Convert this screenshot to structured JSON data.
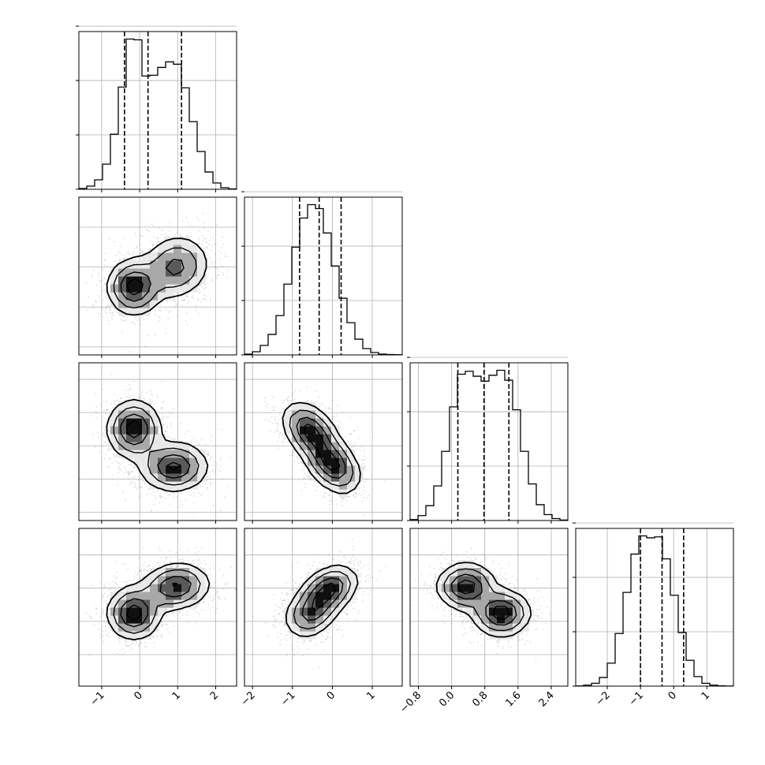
{
  "chart_data": {
    "type": "corner",
    "ndim": 4,
    "grid": true,
    "axes": [
      {
        "range": [
          -1.6,
          2.55
        ],
        "ticks": [
          -1,
          0,
          1,
          2
        ],
        "tick_labels": [
          "−1",
          "0",
          "1",
          "2"
        ]
      },
      {
        "range": [
          -2.2,
          1.75
        ],
        "ticks": [
          -2,
          -1,
          0,
          1
        ],
        "tick_labels": [
          "−2",
          "−1",
          "0",
          "1"
        ]
      },
      {
        "range": [
          -1.0,
          2.8
        ],
        "ticks": [
          -0.8,
          0.0,
          0.8,
          1.6,
          2.4
        ],
        "tick_labels": [
          "−0.8",
          "0.0",
          "0.8",
          "1.6",
          "2.4"
        ]
      },
      {
        "range": [
          -2.95,
          1.8
        ],
        "ticks": [
          -2,
          -1,
          0,
          1
        ],
        "tick_labels": [
          "−2",
          "−1",
          "0",
          "1"
        ]
      }
    ],
    "histograms": [
      {
        "quantiles": [
          -0.4,
          0.22,
          1.1
        ],
        "values": [
          0.1,
          0.4,
          1.2,
          3.2,
          7.0,
          13.0,
          19.1,
          19.0,
          14.4,
          14.5,
          15.5,
          16.2,
          15.9,
          12.9,
          8.6,
          4.8,
          2.2,
          0.8,
          0.2,
          0.05
        ]
      },
      {
        "quantiles": [
          -0.82,
          -0.33,
          0.22
        ],
        "values": [
          0.1,
          0.4,
          1.2,
          2.6,
          5.0,
          9.0,
          13.7,
          17.4,
          19.1,
          18.6,
          15.5,
          11.3,
          7.2,
          4.1,
          2.0,
          0.8,
          0.3,
          0.1,
          0.05,
          0.02
        ]
      },
      {
        "quantiles": [
          0.15,
          0.78,
          1.38
        ],
        "values": [
          0.1,
          0.5,
          1.5,
          3.5,
          7.0,
          11.5,
          14.8,
          15.1,
          14.6,
          14.1,
          14.7,
          15.2,
          14.2,
          11.2,
          7.0,
          3.7,
          1.6,
          0.6,
          0.2,
          0.05
        ]
      },
      {
        "quantiles": [
          -1.0,
          -0.35,
          0.3
        ],
        "values": [
          0.02,
          0.1,
          0.3,
          0.9,
          2.4,
          5.5,
          9.8,
          13.8,
          15.7,
          15.5,
          15.6,
          13.3,
          9.5,
          5.6,
          2.7,
          1.0,
          0.3,
          0.1,
          0.03,
          0.01
        ]
      }
    ],
    "joint": [
      {
        "x": 0,
        "y": 1,
        "components": [
          {
            "weight": 0.5,
            "mean": [
              -0.15,
              -0.5
            ],
            "sd": [
              0.35,
              0.35
            ],
            "rho": 0.0
          },
          {
            "weight": 0.5,
            "mean": [
              0.95,
              0.0
            ],
            "sd": [
              0.45,
              0.4
            ],
            "rho": 0.1
          }
        ]
      },
      {
        "x": 0,
        "y": 2,
        "components": [
          {
            "weight": 0.5,
            "mean": [
              -0.15,
              1.2
            ],
            "sd": [
              0.35,
              0.35
            ],
            "rho": 0.0
          },
          {
            "weight": 0.5,
            "mean": [
              0.9,
              0.3
            ],
            "sd": [
              0.45,
              0.3
            ],
            "rho": 0.0
          }
        ]
      },
      {
        "x": 0,
        "y": 3,
        "components": [
          {
            "weight": 0.5,
            "mean": [
              -0.15,
              -0.75
            ],
            "sd": [
              0.35,
              0.4
            ],
            "rho": 0.0
          },
          {
            "weight": 0.5,
            "mean": [
              0.95,
              0.05
            ],
            "sd": [
              0.45,
              0.35
            ],
            "rho": 0.1
          }
        ]
      },
      {
        "x": 1,
        "y": 2,
        "components": [
          {
            "weight": 0.5,
            "mean": [
              -0.55,
              1.15
            ],
            "sd": [
              0.35,
              0.35
            ],
            "rho": -0.4
          },
          {
            "weight": 0.5,
            "mean": [
              0.0,
              0.35
            ],
            "sd": [
              0.35,
              0.35
            ],
            "rho": -0.4
          }
        ]
      },
      {
        "x": 1,
        "y": 3,
        "components": [
          {
            "weight": 0.5,
            "mean": [
              -0.5,
              -0.7
            ],
            "sd": [
              0.35,
              0.4
            ],
            "rho": 0.3
          },
          {
            "weight": 0.5,
            "mean": [
              -0.05,
              0.0
            ],
            "sd": [
              0.35,
              0.35
            ],
            "rho": 0.3
          }
        ]
      },
      {
        "x": 2,
        "y": 3,
        "components": [
          {
            "weight": 0.5,
            "mean": [
              0.35,
              0.05
            ],
            "sd": [
              0.35,
              0.35
            ],
            "rho": 0.0
          },
          {
            "weight": 0.5,
            "mean": [
              1.2,
              -0.75
            ],
            "sd": [
              0.35,
              0.35
            ],
            "rho": 0.0
          }
        ]
      }
    ]
  }
}
